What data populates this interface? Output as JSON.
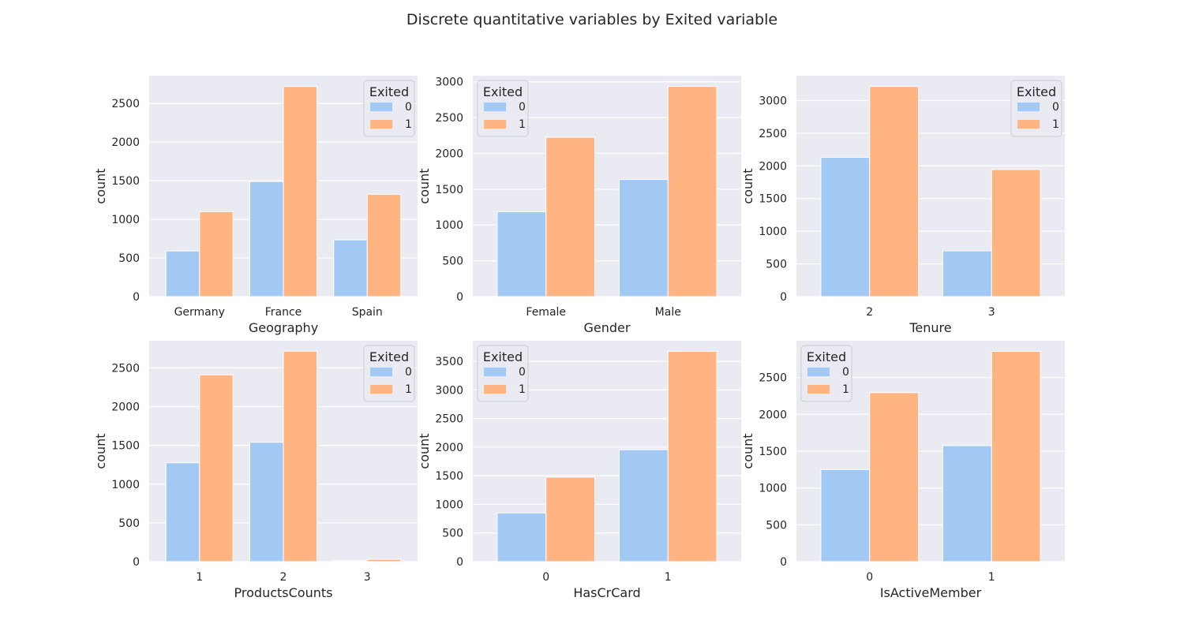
{
  "suptitle": "Discrete quantitative variables by Exited variable",
  "colors": {
    "series_0": "#a1c9f4",
    "series_1": "#ffb482",
    "axes_bg": "#eaeaf2",
    "grid": "#ffffff"
  },
  "chart_data": [
    {
      "type": "bar",
      "xlabel": "Geography",
      "ylabel": "count",
      "categories": [
        "Germany",
        "France",
        "Spain"
      ],
      "series": [
        {
          "name": "0",
          "values": [
            590,
            1490,
            735
          ]
        },
        {
          "name": "1",
          "values": [
            1100,
            2720,
            1325
          ]
        }
      ],
      "ylim": [
        0,
        2860
      ],
      "yticks": [
        0,
        500,
        1000,
        1500,
        2000,
        2500
      ],
      "grid": true,
      "legend": {
        "title": "Exited",
        "position": "top-right"
      }
    },
    {
      "type": "bar",
      "xlabel": "Gender",
      "ylabel": "count",
      "categories": [
        "Female",
        "Male"
      ],
      "series": [
        {
          "name": "0",
          "values": [
            1185,
            1635
          ]
        },
        {
          "name": "1",
          "values": [
            2225,
            2935
          ]
        }
      ],
      "ylim": [
        0,
        3085
      ],
      "yticks": [
        0,
        500,
        1000,
        1500,
        2000,
        2500,
        3000
      ],
      "grid": true,
      "legend": {
        "title": "Exited",
        "position": "top-left"
      }
    },
    {
      "type": "bar",
      "xlabel": "Tenure",
      "ylabel": "count",
      "categories": [
        "2",
        "3"
      ],
      "series": [
        {
          "name": "0",
          "values": [
            2130,
            700
          ]
        },
        {
          "name": "1",
          "values": [
            3215,
            1945
          ]
        }
      ],
      "ylim": [
        0,
        3380
      ],
      "yticks": [
        0,
        500,
        1000,
        1500,
        2000,
        2500,
        3000
      ],
      "grid": true,
      "legend": {
        "title": "Exited",
        "position": "top-right"
      }
    },
    {
      "type": "bar",
      "xlabel": "ProductsCounts",
      "ylabel": "count",
      "categories": [
        "1",
        "2",
        "3"
      ],
      "series": [
        {
          "name": "0",
          "values": [
            1275,
            1540,
            10
          ]
        },
        {
          "name": "1",
          "values": [
            2410,
            2715,
            30
          ]
        }
      ],
      "ylim": [
        0,
        2850
      ],
      "yticks": [
        0,
        500,
        1000,
        1500,
        2000,
        2500
      ],
      "grid": true,
      "legend": {
        "title": "Exited",
        "position": "top-right"
      }
    },
    {
      "type": "bar",
      "xlabel": "HasCrCard",
      "ylabel": "count",
      "categories": [
        "0",
        "1"
      ],
      "series": [
        {
          "name": "0",
          "values": [
            850,
            1955
          ]
        },
        {
          "name": "1",
          "values": [
            1475,
            3675
          ]
        }
      ],
      "ylim": [
        0,
        3860
      ],
      "yticks": [
        0,
        500,
        1000,
        1500,
        2000,
        2500,
        3000,
        3500
      ],
      "grid": true,
      "legend": {
        "title": "Exited",
        "position": "top-left"
      }
    },
    {
      "type": "bar",
      "xlabel": "IsActiveMember",
      "ylabel": "count",
      "categories": [
        "0",
        "1"
      ],
      "series": [
        {
          "name": "0",
          "values": [
            1250,
            1575
          ]
        },
        {
          "name": "1",
          "values": [
            2295,
            2855
          ]
        }
      ],
      "ylim": [
        0,
        3000
      ],
      "yticks": [
        0,
        500,
        1000,
        1500,
        2000,
        2500
      ],
      "grid": true,
      "legend": {
        "title": "Exited",
        "position": "top-left"
      }
    }
  ]
}
